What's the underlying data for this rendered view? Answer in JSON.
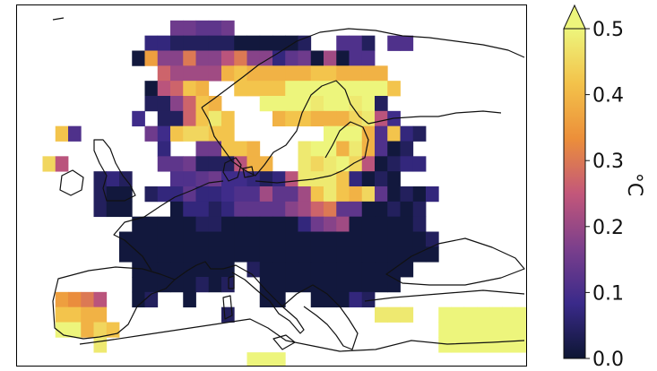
{
  "chart_data": {
    "type": "heatmap",
    "title": "",
    "xlabel": "",
    "ylabel": "",
    "colorbar": {
      "unit_label": "°C",
      "min": 0.0,
      "max": 0.5,
      "extend": "max",
      "ticks": [
        "0.0",
        "0.1",
        "0.2",
        "0.3",
        "0.4",
        "0.5"
      ],
      "colormap_stops": [
        "#0d1633",
        "#3a2a8a",
        "#7b3f8c",
        "#c3577a",
        "#ec8f3a",
        "#f3c24a",
        "#edf57c"
      ]
    },
    "grid": {
      "lon_start": -10,
      "lon_step": 2,
      "lat_start": 72,
      "lat_step": -2,
      "rows": [
        "........................................",
        "............ggffg.......................",
        "..........ccbbbbbaaaaab..eeb.ee.........",
        ".........anhhlhhjlhhcfgaiaee...........",
        "...........kiiiiopoooooppoooo...........",
        "..........ajkpo..ppppssssssssp..........",
        "..........bbhkpo...ssssrssrsb...........",
        ".........d.bbkprp...oppoooqrjd..........",
        "...pe.....gdpqqpp.......sssoepcb.........",
        "...........c..ggppo...rssoroeab..........",
        "..qj.......ffgbbbjoo..rqrsqjabcc.........",
        "......bcb...eefgddcbcjrrrpcaba..........",
        "......baa.bccfccdeeiffiprpoqfabac........",
        "......baa...accbcffffhiklffaabab.........",
        ".........aaaaabbaaaaaacghiaaaaab.........",
        "........aaaaaaaaaaaaaaaaaaaaaaaab........",
        "........aaaaaaaaaaaaaaaaaaaaaaaaa........",
        ".........aaaaaaaa.baaaaaaaaaaaa.........",
        ".........aaaaabab..aaaaaaaaaaa...........",
        "...nmlj..ab..a.....aa..aaacb.............",
        "...ppoo.........b...........rrr..ssssssso",
        "...ssoqp.........................sssssssr",
        "......r..........................ssssssss",
        "..................sss...................."
      ],
      "levels": {
        "a": 0.01,
        "b": 0.04,
        "c": 0.07,
        "d": 0.09,
        "e": 0.11,
        "f": 0.13,
        "g": 0.15,
        "h": 0.18,
        "i": 0.21,
        "j": 0.24,
        "k": 0.27,
        "l": 0.3,
        "m": 0.33,
        "n": 0.36,
        "o": 0.39,
        "p": 0.42,
        "q": 0.45,
        "r": 0.48,
        "s": 0.51
      }
    }
  }
}
